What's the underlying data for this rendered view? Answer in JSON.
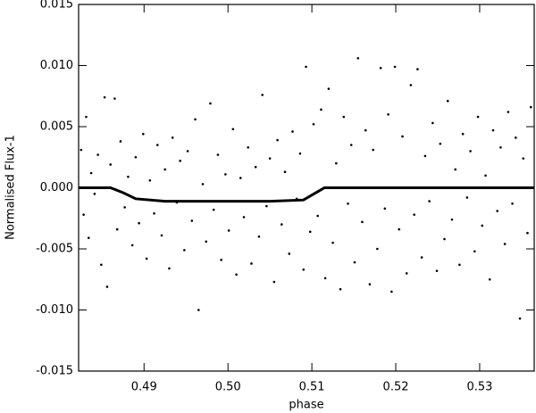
{
  "chart_data": {
    "type": "scatter",
    "xlabel": "phase",
    "ylabel": "Normalised Flux-1",
    "xlim": [
      0.4822,
      0.5365
    ],
    "ylim": [
      -0.015,
      0.015
    ],
    "xticks": [
      0.49,
      {
        "value": 0.5,
        "label": "0.50"
      },
      0.51,
      0.52,
      0.53
    ],
    "yticks": [
      -0.015,
      {
        "value": -0.01,
        "label": "-0.010"
      },
      -0.005,
      {
        "value": 0,
        "label": "0.000"
      },
      0.005,
      {
        "value": 0.01,
        "label": "0.010"
      },
      0.015
    ],
    "color": "#000000",
    "x": [
      0.4825,
      0.4828,
      0.4831,
      0.4834,
      0.4837,
      0.4841,
      0.4845,
      0.4849,
      0.4853,
      0.4856,
      0.486,
      0.4865,
      0.4868,
      0.4872,
      0.4877,
      0.4881,
      0.4886,
      0.489,
      0.4894,
      0.4899,
      0.4903,
      0.4907,
      0.4912,
      0.4916,
      0.4921,
      0.4925,
      0.493,
      0.4934,
      0.4939,
      0.4943,
      0.4948,
      0.4952,
      0.4957,
      0.4961,
      0.4965,
      0.497,
      0.4974,
      0.4979,
      0.4983,
      0.4988,
      0.4992,
      0.4997,
      0.5001,
      0.5006,
      0.501,
      0.5015,
      0.5019,
      0.5024,
      0.5028,
      0.5033,
      0.5037,
      0.5041,
      0.5046,
      0.505,
      0.5055,
      0.5059,
      0.5064,
      0.5068,
      0.5073,
      0.5077,
      0.5082,
      0.5086,
      0.509,
      0.5093,
      0.5098,
      0.5102,
      0.5107,
      0.5111,
      0.5116,
      0.512,
      0.5125,
      0.5129,
      0.5134,
      0.5138,
      0.5143,
      0.5147,
      0.5151,
      0.5155,
      0.516,
      0.5164,
      0.5169,
      0.5173,
      0.5178,
      0.5182,
      0.5187,
      0.5191,
      0.5195,
      0.5199,
      0.5204,
      0.5208,
      0.5213,
      0.5218,
      0.5222,
      0.5226,
      0.5231,
      0.5235,
      0.524,
      0.5244,
      0.5249,
      0.5253,
      0.5258,
      0.5262,
      0.5267,
      0.5271,
      0.5276,
      0.528,
      0.5285,
      0.5289,
      0.5294,
      0.5298,
      0.5303,
      0.5307,
      0.5312,
      0.5316,
      0.5321,
      0.5325,
      0.533,
      0.5334,
      0.5339,
      0.5343,
      0.5348,
      0.5352,
      0.5357,
      0.5361
    ],
    "values": [
      0.0031,
      -0.0022,
      0.0058,
      -0.0041,
      0.0012,
      -0.0005,
      0.0027,
      -0.0063,
      0.0074,
      -0.0081,
      0.0019,
      0.0073,
      -0.0034,
      0.0038,
      -0.0016,
      0.0009,
      -0.0047,
      0.0025,
      -0.0029,
      0.0044,
      -0.0058,
      0.0006,
      -0.0021,
      0.0035,
      -0.0039,
      0.0015,
      -0.0066,
      0.0041,
      -0.0012,
      0.0022,
      -0.0051,
      0.003,
      -0.0027,
      0.0056,
      -0.01,
      0.0003,
      -0.0044,
      0.0069,
      -0.0018,
      0.0027,
      -0.0059,
      0.0011,
      -0.0035,
      0.0048,
      -0.0071,
      0.0008,
      -0.0024,
      0.0033,
      -0.0062,
      0.0017,
      -0.004,
      0.0076,
      -0.0015,
      0.0024,
      -0.0077,
      0.0039,
      -0.003,
      0.0013,
      -0.0054,
      0.0046,
      -0.0009,
      0.0028,
      -0.0067,
      0.0099,
      -0.0036,
      0.0052,
      -0.0023,
      0.0064,
      -0.0074,
      0.0081,
      -0.0045,
      0.002,
      -0.0083,
      0.0058,
      -0.0013,
      0.0035,
      -0.0061,
      0.0106,
      -0.0028,
      0.0047,
      -0.0079,
      0.0031,
      -0.005,
      0.0098,
      -0.0017,
      0.006,
      -0.0085,
      0.0099,
      -0.0034,
      0.0042,
      -0.007,
      0.0084,
      -0.0022,
      0.0097,
      -0.0057,
      0.0026,
      -0.0011,
      0.0053,
      -0.0068,
      0.0036,
      -0.0042,
      0.0071,
      -0.0026,
      0.0015,
      -0.0063,
      0.0044,
      -0.0008,
      0.003,
      -0.0052,
      0.0058,
      -0.0031,
      0.001,
      -0.0075,
      0.0047,
      -0.0019,
      0.0033,
      -0.0046,
      0.0062,
      -0.0013,
      0.0041,
      -0.0107,
      0.0024,
      -0.0037,
      0.0066
    ],
    "model": {
      "color": "#000000",
      "x": [
        0.4822,
        0.486,
        0.4875,
        0.489,
        0.4925,
        0.505,
        0.509,
        0.5105,
        0.5115,
        0.5365
      ],
      "values": [
        0,
        0,
        -0.0004,
        -0.0009,
        -0.0011,
        -0.0011,
        -0.001,
        -0.0004,
        0,
        0
      ]
    }
  }
}
